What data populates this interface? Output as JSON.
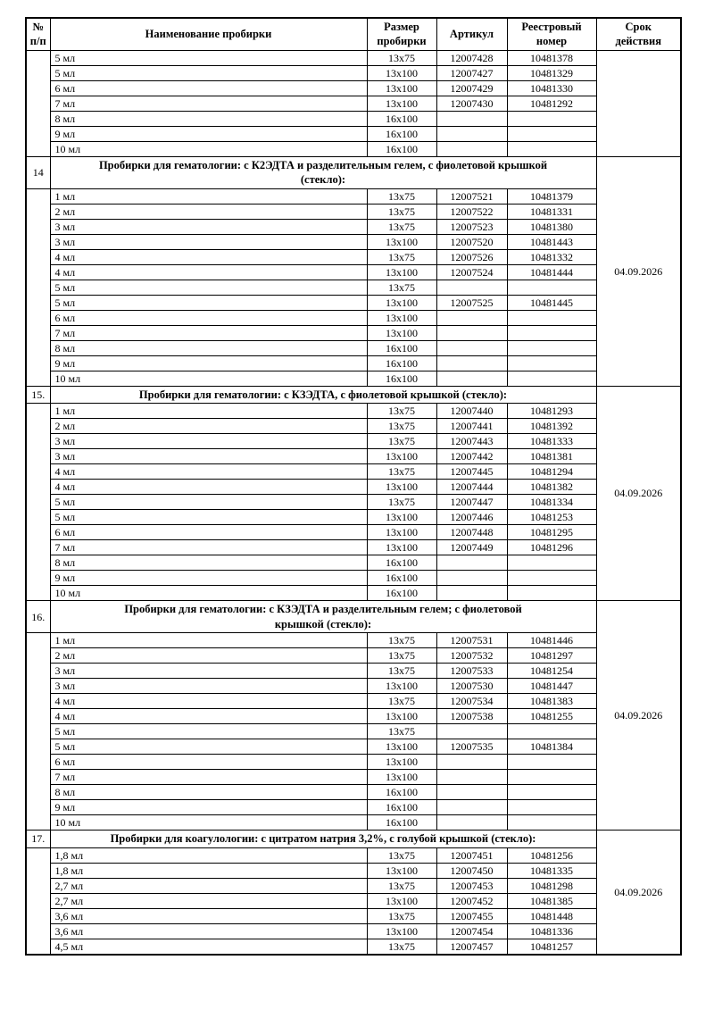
{
  "table": {
    "headers": [
      "№\nп/п",
      "Наименование пробирки",
      "Размер\nпробирки",
      "Артикул",
      "Реестровый\nномер",
      "Срок\nдействия"
    ],
    "sections": [
      {
        "number": "",
        "title": "",
        "validity": "",
        "rows": [
          [
            "5 мл",
            "13x75",
            "12007428",
            "10481378"
          ],
          [
            "5 мл",
            "13x100",
            "12007427",
            "10481329"
          ],
          [
            "6 мл",
            "13x100",
            "12007429",
            "10481330"
          ],
          [
            "7 мл",
            "13x100",
            "12007430",
            "10481292"
          ],
          [
            "8 мл",
            "16x100",
            "",
            ""
          ],
          [
            "9 мл",
            "16x100",
            "",
            ""
          ],
          [
            "10 мл",
            "16x100",
            "",
            ""
          ]
        ]
      },
      {
        "number": "14",
        "title": "Пробирки для гематологии: с К2ЭДТА и разделительным гелем, с фиолетовой крышкой\n(стекло):",
        "validity": "04.09.2026",
        "rows": [
          [
            "1 мл",
            "13x75",
            "12007521",
            "10481379"
          ],
          [
            "2 мл",
            "13x75",
            "12007522",
            "10481331"
          ],
          [
            "3 мл",
            "13x75",
            "12007523",
            "10481380"
          ],
          [
            "3 мл",
            "13x100",
            "12007520",
            "10481443"
          ],
          [
            "4 мл",
            "13x75",
            "12007526",
            "10481332"
          ],
          [
            "4 мл",
            "13x100",
            "12007524",
            "10481444"
          ],
          [
            "5 мл",
            "13x75",
            "",
            ""
          ],
          [
            "5 мл",
            "13x100",
            "12007525",
            "10481445"
          ],
          [
            "6 мл",
            "13x100",
            "",
            ""
          ],
          [
            "7 мл",
            "13x100",
            "",
            ""
          ],
          [
            "8 мл",
            "16x100",
            "",
            ""
          ],
          [
            "9 мл",
            "16x100",
            "",
            ""
          ],
          [
            "10 мл",
            "16x100",
            "",
            ""
          ]
        ]
      },
      {
        "number": "15.",
        "title": "Пробирки для гематологии: с КЗЭДТА, с фиолетовой крышкой (стекло):",
        "validity": "04.09.2026",
        "rows": [
          [
            "1 мл",
            "13x75",
            "12007440",
            "10481293"
          ],
          [
            "2 мл",
            "13x75",
            "12007441",
            "10481392"
          ],
          [
            "3 мл",
            "13x75",
            "12007443",
            "10481333"
          ],
          [
            "3 мл",
            "13x100",
            "12007442",
            "10481381"
          ],
          [
            "4 мл",
            "13x75",
            "12007445",
            "10481294"
          ],
          [
            "4 мл",
            "13x100",
            "12007444",
            "10481382"
          ],
          [
            "5 мл",
            "13x75",
            "12007447",
            "10481334"
          ],
          [
            "5 мл",
            "13x100",
            "12007446",
            "10481253"
          ],
          [
            "6 мл",
            "13x100",
            "12007448",
            "10481295"
          ],
          [
            "7 мл",
            "13x100",
            "12007449",
            "10481296"
          ],
          [
            "8 мл",
            "16x100",
            "",
            ""
          ],
          [
            "9 мл",
            "16x100",
            "",
            ""
          ],
          [
            "10 мл",
            "16x100",
            "",
            ""
          ]
        ]
      },
      {
        "number": "16.",
        "title": "Пробирки для гематологии: с КЗЭДТА и разделительным гелем; с фиолетовой\nкрышкой (стекло):",
        "validity": "04.09.2026",
        "rows": [
          [
            "1 мл",
            "13x75",
            "12007531",
            "10481446"
          ],
          [
            "2 мл",
            "13x75",
            "12007532",
            "10481297"
          ],
          [
            "3 мл",
            "13x75",
            "12007533",
            "10481254"
          ],
          [
            "3 мл",
            "13x100",
            "12007530",
            "10481447"
          ],
          [
            "4 мл",
            "13x75",
            "12007534",
            "10481383"
          ],
          [
            "4 мл",
            "13x100",
            "12007538",
            "10481255"
          ],
          [
            "5 мл",
            "13x75",
            "",
            ""
          ],
          [
            "5 мл",
            "13x100",
            "12007535",
            "10481384"
          ],
          [
            "6 мл",
            "13x100",
            "",
            ""
          ],
          [
            "7 мл",
            "13x100",
            "",
            ""
          ],
          [
            "8 мл",
            "16x100",
            "",
            ""
          ],
          [
            "9 мл",
            "16x100",
            "",
            ""
          ],
          [
            "10 мл",
            "16x100",
            "",
            ""
          ]
        ]
      },
      {
        "number": "17.",
        "title": "Пробирки для коагулологии: с цитратом натрия 3,2%, с голубой крышкой (стекло):",
        "validity": "04.09.2026",
        "rows": [
          [
            "1,8 мл",
            "13x75",
            "12007451",
            "10481256"
          ],
          [
            "1,8 мл",
            "13x100",
            "12007450",
            "10481335"
          ],
          [
            "2,7 мл",
            "13x75",
            "12007453",
            "10481298"
          ],
          [
            "2,7 мл",
            "13x100",
            "12007452",
            "10481385"
          ],
          [
            "3,6 мл",
            "13x75",
            "12007455",
            "10481448"
          ],
          [
            "3,6 мл",
            "13x100",
            "12007454",
            "10481336"
          ],
          [
            "4,5 мл",
            "13x75",
            "12007457",
            "10481257"
          ]
        ]
      }
    ]
  }
}
